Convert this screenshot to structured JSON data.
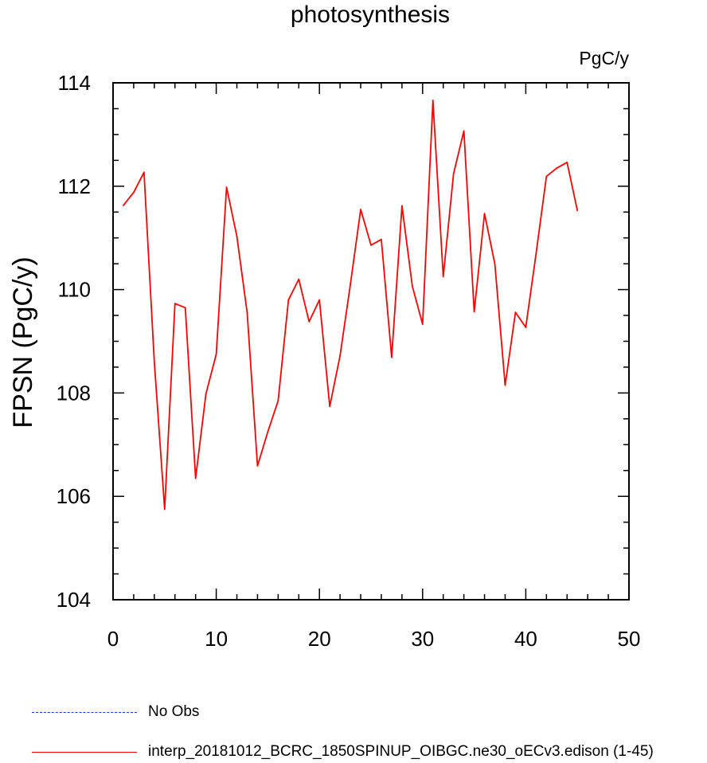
{
  "chart_data": {
    "type": "line",
    "title": "photosynthesis",
    "units_label": "PgC/y",
    "xlabel": "",
    "ylabel": "FPSN  (PgC/y)",
    "xlim": [
      0,
      50
    ],
    "ylim": [
      104,
      114
    ],
    "xticks": [
      0,
      10,
      20,
      30,
      40,
      50
    ],
    "yticks": [
      104,
      106,
      108,
      110,
      112,
      114
    ],
    "xtick_labels": [
      "0",
      "10",
      "20",
      "30",
      "40",
      "50"
    ],
    "ytick_labels": [
      "104",
      "106",
      "108",
      "110",
      "112",
      "114"
    ],
    "grid": false,
    "legend_position": "bottom",
    "series": [
      {
        "name": "interp_20181012_BCRC_1850SPINUP_OIBGC.ne30_oECv3.edison (1-45)",
        "color": "#ff0000",
        "style": "solid",
        "x": [
          1,
          2,
          3,
          4,
          5,
          6,
          7,
          8,
          9,
          10,
          11,
          12,
          13,
          14,
          15,
          16,
          17,
          18,
          19,
          20,
          21,
          22,
          23,
          24,
          25,
          26,
          27,
          28,
          29,
          30,
          31,
          32,
          33,
          34,
          35,
          36,
          37,
          38,
          39,
          40,
          41,
          42,
          43,
          44,
          45
        ],
        "y": [
          111.63,
          111.88,
          112.27,
          108.6,
          105.75,
          109.73,
          109.65,
          106.35,
          107.98,
          108.75,
          111.98,
          111.03,
          109.55,
          106.59,
          107.25,
          107.85,
          109.8,
          110.2,
          109.38,
          109.8,
          107.74,
          108.72,
          110.1,
          111.55,
          110.86,
          110.97,
          108.69,
          111.62,
          110.07,
          109.33,
          113.66,
          110.25,
          112.24,
          113.07,
          109.57,
          111.47,
          110.5,
          108.15,
          109.56,
          109.27,
          110.7,
          112.19,
          112.35,
          112.46,
          111.53
        ]
      }
    ],
    "legend": [
      {
        "label": "No Obs",
        "color": "#0000ff",
        "style": "dashed"
      },
      {
        "label": "interp_20181012_BCRC_1850SPINUP_OIBGC.ne30_oECv3.edison (1-45)",
        "color": "#ff0000",
        "style": "solid"
      }
    ]
  }
}
